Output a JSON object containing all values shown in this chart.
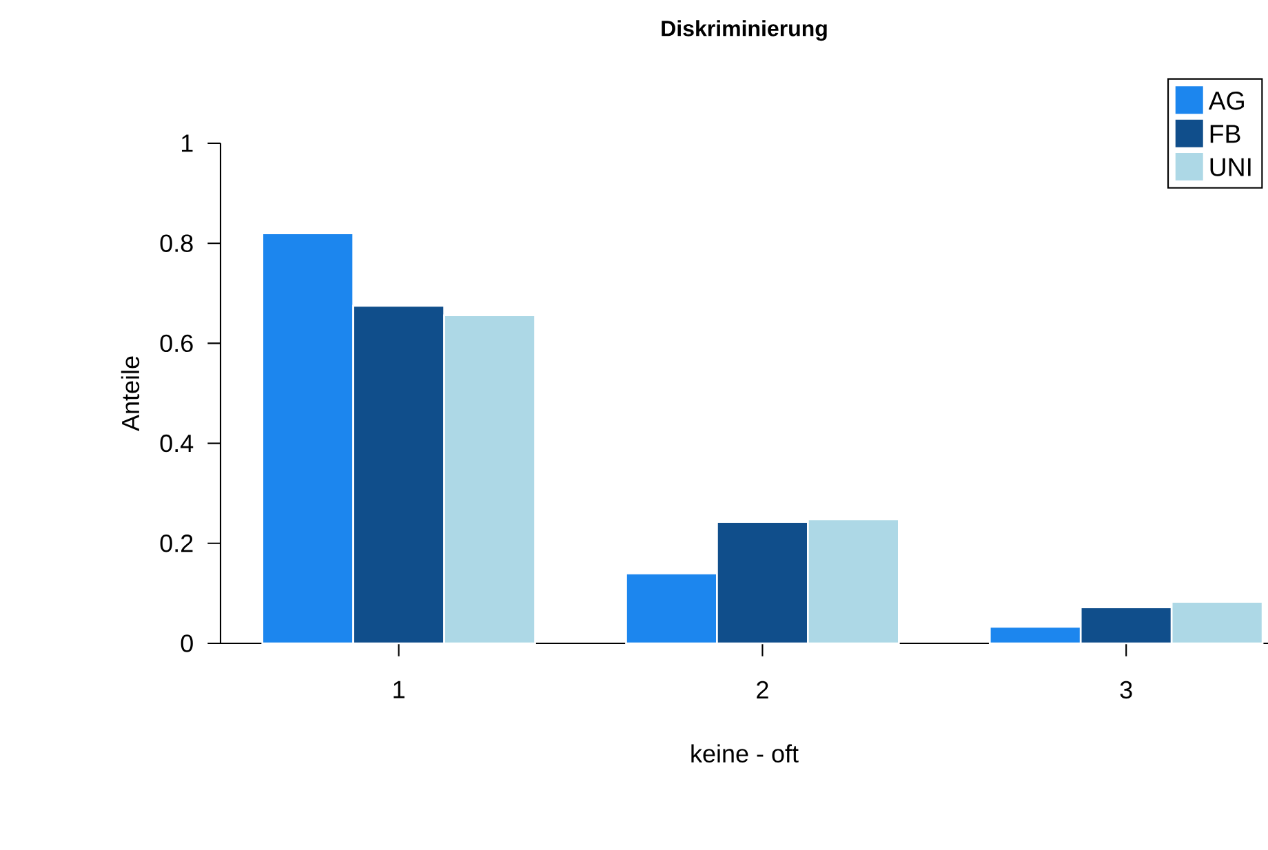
{
  "chart_data": {
    "type": "bar",
    "title": "Diskriminierung",
    "xlabel": "keine - oft",
    "ylabel": "Anteile",
    "categories": [
      "1",
      "2",
      "3"
    ],
    "series": [
      {
        "name": "AG",
        "color": "#1c86ee",
        "values": [
          0.82,
          0.14,
          0.033
        ]
      },
      {
        "name": "FB",
        "color": "#104e8b",
        "values": [
          0.675,
          0.243,
          0.072
        ]
      },
      {
        "name": "UNI",
        "color": "#add8e6",
        "values": [
          0.656,
          0.248,
          0.083
        ]
      }
    ],
    "ylim": [
      0,
      1
    ],
    "yticks": [
      0,
      0.2,
      0.4,
      0.6,
      0.8,
      1
    ],
    "legend": "top right",
    "grid": false
  }
}
